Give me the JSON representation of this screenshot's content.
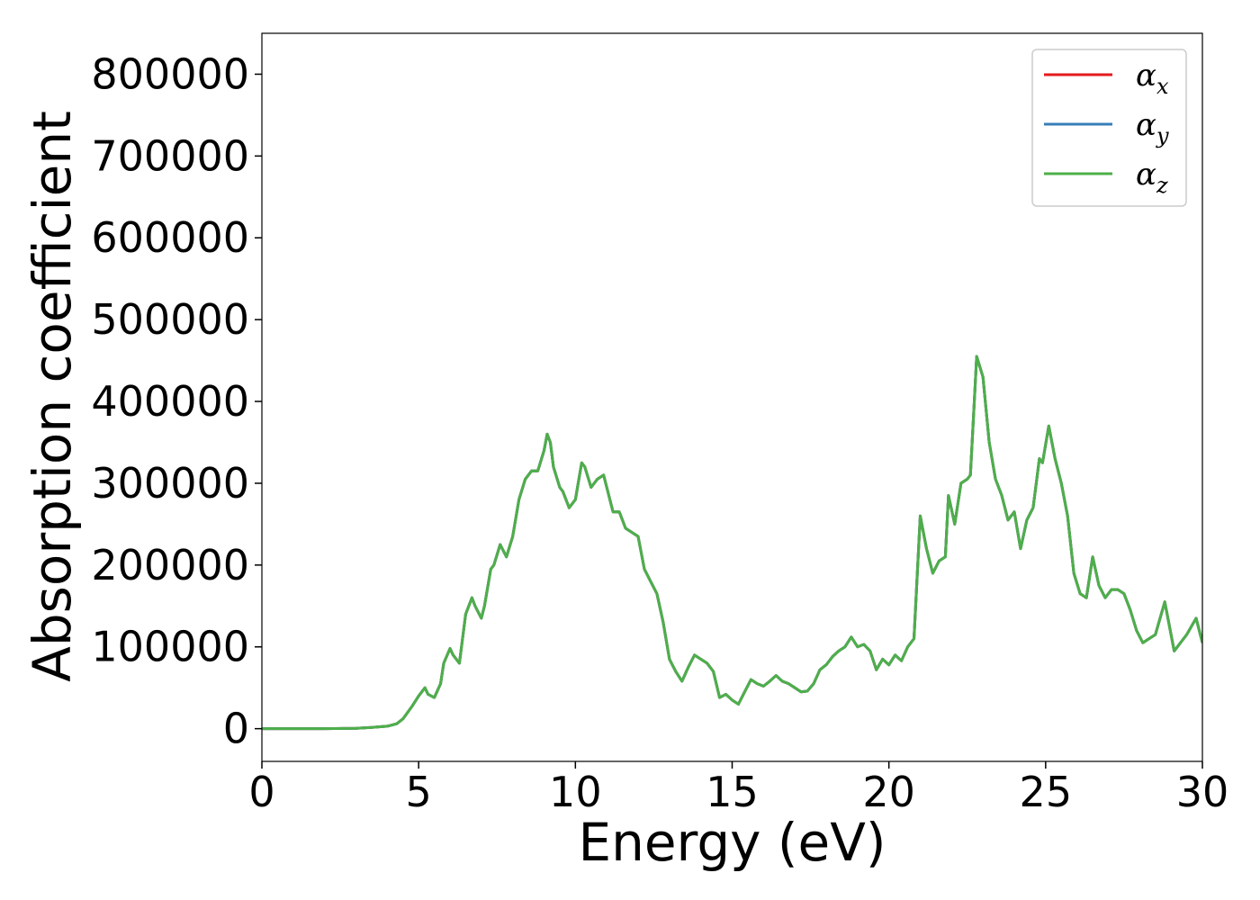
{
  "chart_data": {
    "type": "line",
    "title": "",
    "xlabel": "Energy (eV)",
    "ylabel": "Absorption coefficient",
    "xlim": [
      0,
      30
    ],
    "ylim": [
      -40000,
      850000
    ],
    "xticks": [
      0,
      5,
      10,
      15,
      20,
      25,
      30
    ],
    "xtick_labels": [
      "0",
      "5",
      "10",
      "15",
      "20",
      "25",
      "30"
    ],
    "yticks": [
      0,
      100000,
      200000,
      300000,
      400000,
      500000,
      600000,
      700000,
      800000
    ],
    "ytick_labels": [
      "0",
      "100000",
      "200000",
      "300000",
      "400000",
      "500000",
      "600000",
      "700000",
      "800000"
    ],
    "grid": false,
    "legend_position": "top-right",
    "x": [
      0,
      1,
      2,
      3,
      3.5,
      4,
      4.3,
      4.5,
      4.8,
      5.0,
      5.2,
      5.3,
      5.5,
      5.7,
      5.8,
      6.0,
      6.1,
      6.3,
      6.5,
      6.7,
      6.8,
      7.0,
      7.1,
      7.3,
      7.4,
      7.6,
      7.8,
      8.0,
      8.2,
      8.4,
      8.6,
      8.8,
      9.0,
      9.1,
      9.2,
      9.3,
      9.5,
      9.6,
      9.8,
      10.0,
      10.2,
      10.3,
      10.5,
      10.7,
      10.9,
      11.0,
      11.2,
      11.4,
      11.6,
      11.8,
      12.0,
      12.2,
      12.4,
      12.6,
      12.8,
      13.0,
      13.2,
      13.4,
      13.6,
      13.8,
      14.0,
      14.2,
      14.4,
      14.6,
      14.8,
      15.0,
      15.2,
      15.4,
      15.6,
      15.8,
      16.0,
      16.2,
      16.4,
      16.6,
      16.8,
      17.0,
      17.2,
      17.4,
      17.6,
      17.8,
      18.0,
      18.2,
      18.4,
      18.6,
      18.8,
      19.0,
      19.2,
      19.4,
      19.6,
      19.8,
      20.0,
      20.2,
      20.4,
      20.6,
      20.8,
      21.0,
      21.2,
      21.4,
      21.6,
      21.8,
      21.9,
      22.1,
      22.3,
      22.5,
      22.6,
      22.8,
      23.0,
      23.2,
      23.4,
      23.6,
      23.8,
      24.0,
      24.2,
      24.4,
      24.6,
      24.8,
      24.9,
      25.1,
      25.3,
      25.5,
      25.7,
      25.9,
      26.1,
      26.3,
      26.5,
      26.7,
      26.9,
      27.1,
      27.3,
      27.5,
      27.7,
      27.9,
      28.1,
      28.3,
      28.5,
      28.8,
      29.1,
      29.5,
      29.8,
      30.0
    ],
    "series": [
      {
        "name": "α_x",
        "color": "#e41a1c",
        "values": [
          0,
          0,
          0,
          500,
          1500,
          3000,
          6000,
          12000,
          28000,
          40000,
          50000,
          42000,
          38000,
          55000,
          80000,
          98000,
          90000,
          80000,
          140000,
          160000,
          150000,
          135000,
          150000,
          195000,
          200000,
          225000,
          210000,
          235000,
          280000,
          305000,
          315000,
          315000,
          340000,
          360000,
          350000,
          320000,
          295000,
          290000,
          270000,
          280000,
          325000,
          320000,
          295000,
          305000,
          310000,
          295000,
          265000,
          265000,
          245000,
          240000,
          235000,
          195000,
          180000,
          165000,
          130000,
          85000,
          70000,
          58000,
          75000,
          90000,
          85000,
          80000,
          70000,
          38000,
          42000,
          35000,
          30000,
          45000,
          60000,
          55000,
          52000,
          58000,
          65000,
          58000,
          55000,
          50000,
          45000,
          46000,
          55000,
          72000,
          78000,
          88000,
          95000,
          100000,
          112000,
          100000,
          103000,
          95000,
          72000,
          85000,
          78000,
          90000,
          83000,
          100000,
          110000,
          260000,
          220000,
          190000,
          205000,
          210000,
          285000,
          250000,
          300000,
          305000,
          310000,
          455000,
          430000,
          350000,
          305000,
          285000,
          255000,
          265000,
          220000,
          255000,
          270000,
          330000,
          325000,
          370000,
          330000,
          300000,
          260000,
          190000,
          165000,
          160000,
          210000,
          175000,
          160000,
          170000,
          170000,
          165000,
          145000,
          120000,
          105000,
          110000,
          115000,
          155000,
          95000,
          115000,
          135000,
          105000
        ]
      },
      {
        "name": "α_y",
        "color": "#377eb8",
        "values": [
          0,
          0,
          0,
          500,
          1500,
          3000,
          6000,
          12000,
          28000,
          40000,
          50000,
          42000,
          38000,
          55000,
          80000,
          98000,
          90000,
          80000,
          140000,
          160000,
          150000,
          135000,
          150000,
          195000,
          200000,
          225000,
          210000,
          235000,
          280000,
          305000,
          315000,
          315000,
          340000,
          360000,
          350000,
          320000,
          295000,
          290000,
          270000,
          280000,
          325000,
          320000,
          295000,
          305000,
          310000,
          295000,
          265000,
          265000,
          245000,
          240000,
          235000,
          195000,
          180000,
          165000,
          130000,
          85000,
          70000,
          58000,
          75000,
          90000,
          85000,
          80000,
          70000,
          38000,
          42000,
          35000,
          30000,
          45000,
          60000,
          55000,
          52000,
          58000,
          65000,
          58000,
          55000,
          50000,
          45000,
          46000,
          55000,
          72000,
          78000,
          88000,
          95000,
          100000,
          112000,
          100000,
          103000,
          95000,
          72000,
          85000,
          78000,
          90000,
          83000,
          100000,
          110000,
          260000,
          220000,
          190000,
          205000,
          210000,
          285000,
          250000,
          300000,
          305000,
          310000,
          455000,
          430000,
          350000,
          305000,
          285000,
          255000,
          265000,
          220000,
          255000,
          270000,
          330000,
          325000,
          370000,
          330000,
          300000,
          260000,
          190000,
          165000,
          160000,
          210000,
          175000,
          160000,
          170000,
          170000,
          165000,
          145000,
          120000,
          105000,
          110000,
          115000,
          155000,
          95000,
          115000,
          135000,
          105000
        ]
      },
      {
        "name": "α_z",
        "color": "#4daf4a",
        "values": [
          0,
          0,
          0,
          500,
          1500,
          3000,
          6000,
          12000,
          28000,
          40000,
          50000,
          42000,
          38000,
          55000,
          80000,
          98000,
          90000,
          80000,
          140000,
          160000,
          150000,
          135000,
          150000,
          195000,
          200000,
          225000,
          210000,
          235000,
          280000,
          305000,
          315000,
          315000,
          340000,
          360000,
          350000,
          320000,
          295000,
          290000,
          270000,
          280000,
          325000,
          320000,
          295000,
          305000,
          310000,
          295000,
          265000,
          265000,
          245000,
          240000,
          235000,
          195000,
          180000,
          165000,
          130000,
          85000,
          70000,
          58000,
          75000,
          90000,
          85000,
          80000,
          70000,
          38000,
          42000,
          35000,
          30000,
          45000,
          60000,
          55000,
          52000,
          58000,
          65000,
          58000,
          55000,
          50000,
          45000,
          46000,
          55000,
          72000,
          78000,
          88000,
          95000,
          100000,
          112000,
          100000,
          103000,
          95000,
          72000,
          85000,
          78000,
          90000,
          83000,
          100000,
          110000,
          260000,
          220000,
          190000,
          205000,
          210000,
          285000,
          250000,
          300000,
          305000,
          310000,
          455000,
          430000,
          350000,
          305000,
          285000,
          255000,
          265000,
          220000,
          255000,
          270000,
          330000,
          325000,
          370000,
          330000,
          300000,
          260000,
          190000,
          165000,
          160000,
          210000,
          175000,
          160000,
          170000,
          170000,
          165000,
          145000,
          120000,
          105000,
          110000,
          115000,
          155000,
          95000,
          115000,
          135000,
          105000
        ]
      }
    ],
    "legend": [
      {
        "symbol": "α",
        "sub": "x",
        "color": "#e41a1c"
      },
      {
        "symbol": "α",
        "sub": "y",
        "color": "#377eb8"
      },
      {
        "symbol": "α",
        "sub": "z",
        "color": "#4daf4a"
      }
    ]
  }
}
